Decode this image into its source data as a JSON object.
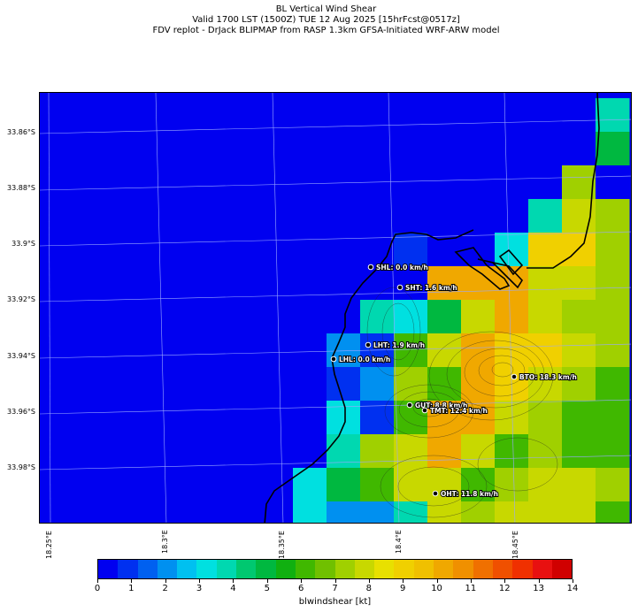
{
  "title": {
    "line1": "BL Vertical Wind Shear",
    "line2": "Valid 1700 LST (1500Z) TUE 12 Aug 2025 [15hrFcst@0517z]",
    "line3": "FDV replot - DrJack BLIPMAP from RASP 1.3km GFSA-Initiated WRF-ARW model"
  },
  "lat_labels": [
    "33.86°S",
    "33.88°S",
    "33.9°S",
    "33.92°S",
    "33.94°S",
    "33.96°S",
    "33.98°S"
  ],
  "lon_labels": [
    "18.25°E",
    "18.3°E",
    "18.35°E",
    "18.4°E",
    "18.45°E"
  ],
  "stations": [
    {
      "label": "SHL: 0.0 km/h"
    },
    {
      "label": "SHT: 1.6 km/h"
    },
    {
      "label": "LHT: 1.9 km/h"
    },
    {
      "label": "LHL: 0.0 km/h"
    },
    {
      "label": "BTO: 18.3 km/h"
    },
    {
      "label": "GUT: 8.8 km/h"
    },
    {
      "label": "TMT: 12.4 km/h"
    },
    {
      "label": "OHT: 11.8 km/h"
    }
  ],
  "colorbar": {
    "label": "blwindshear [kt]",
    "ticks": [
      "0",
      "1",
      "2",
      "3",
      "4",
      "5",
      "6",
      "7",
      "8",
      "9",
      "10",
      "11",
      "12",
      "13",
      "14"
    ],
    "min": 0,
    "max": 14,
    "colors": [
      "#0000f0",
      "#0030f0",
      "#0060f0",
      "#0090f0",
      "#00c0f0",
      "#00e0e0",
      "#00d8b0",
      "#00c870",
      "#00b840",
      "#10b010",
      "#40b800",
      "#70c000",
      "#a0d000",
      "#c8d800",
      "#e8e000",
      "#f0d000",
      "#f0c000",
      "#f0a800",
      "#f09000",
      "#f07000",
      "#f05000",
      "#f03000",
      "#e81010",
      "#d00000"
    ]
  },
  "chart_data": {
    "type": "heatmap",
    "variable": "blwindshear",
    "units": "kt",
    "lat_ticks": [
      -33.86,
      -33.88,
      -33.9,
      -33.92,
      -33.94,
      -33.96,
      -33.98
    ],
    "lon_ticks": [
      18.25,
      18.3,
      18.35,
      18.4,
      18.45
    ],
    "grid_rows": [
      [
        0,
        0,
        0,
        0,
        0,
        0,
        0,
        0,
        0,
        0,
        0,
        0,
        0,
        0,
        0,
        0,
        0,
        4
      ],
      [
        0,
        0,
        0,
        0,
        0,
        0,
        0,
        0,
        0,
        0,
        0,
        0,
        0,
        0,
        0,
        0,
        0,
        5
      ],
      [
        0,
        0,
        0,
        0,
        0,
        0,
        0,
        0,
        0,
        0,
        0,
        0,
        0,
        0,
        0,
        0,
        7,
        0
      ],
      [
        0,
        0,
        0,
        0,
        0,
        0,
        0,
        0,
        0,
        0,
        0,
        0,
        0,
        0,
        0,
        4,
        8,
        7
      ],
      [
        0,
        0,
        0,
        0,
        0,
        0,
        0,
        0,
        0,
        0,
        0,
        1,
        0,
        0,
        3,
        9,
        9,
        7
      ],
      [
        0,
        0,
        0,
        0,
        0,
        0,
        0,
        0,
        0,
        0,
        0,
        0,
        10,
        10,
        10,
        8,
        8,
        7
      ],
      [
        0,
        0,
        0,
        0,
        0,
        0,
        0,
        0,
        0,
        0,
        4,
        3,
        5,
        8,
        10,
        8,
        7,
        7
      ],
      [
        0,
        0,
        0,
        0,
        0,
        0,
        0,
        0,
        0,
        2,
        1,
        6,
        8,
        10,
        9,
        9,
        8,
        7
      ],
      [
        0,
        0,
        0,
        0,
        0,
        0,
        0,
        0,
        0,
        1,
        2,
        7,
        6,
        10,
        9,
        8,
        7,
        6
      ],
      [
        0,
        0,
        0,
        0,
        0,
        0,
        0,
        0,
        0,
        3,
        1,
        6,
        10,
        10,
        8,
        7,
        6,
        6
      ],
      [
        0,
        0,
        0,
        0,
        0,
        0,
        0,
        0,
        0,
        4,
        7,
        8,
        10,
        8,
        6,
        7,
        6,
        6
      ],
      [
        0,
        0,
        0,
        0,
        0,
        0,
        0,
        0,
        3,
        5,
        6,
        8,
        8,
        6,
        7,
        8,
        8,
        7
      ],
      [
        0,
        0,
        0,
        0,
        0,
        0,
        0,
        0,
        3,
        2,
        2,
        4,
        8,
        7,
        8,
        8,
        8,
        6
      ],
      [
        0,
        0,
        0,
        0,
        0,
        0,
        0,
        1,
        3,
        3,
        1,
        3,
        7,
        8,
        8,
        7,
        7,
        6
      ]
    ]
  }
}
